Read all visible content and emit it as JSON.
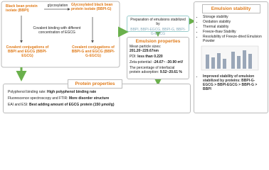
{
  "left": {
    "bbpi": "Black bean protein isolate (BBPI)",
    "glycosylation": "glycosylation",
    "bbpi_g": "Glycosylated black bean protein isolate (BBPI-G)",
    "covalent": "Covalent binding with different concentration of EGCG",
    "bbpi_egcg": "Covalent conjugations of BBPI and EGCG (BBPI-EGCG)",
    "bbpi_g_egcg": "Covalent conjugations of BBPI-G and EGCG (BBPI-G-EGCG)"
  },
  "preparation": {
    "label": "Preparation of emulsions stabilized by",
    "items": "BBPI, BBPI-EGCG, BBPI-G, BBPI-G-EGCG"
  },
  "emulsion_properties": {
    "title": "Emulsion properties",
    "lines": [
      {
        "label": "Mean particle sizes: ",
        "value": "201.20~229.67nm"
      },
      {
        "label": "PDI: ",
        "value": "less than 0.220"
      },
      {
        "label": "Zeta-potential: ",
        "value": "-24.67~ -30.90 mV"
      },
      {
        "label": "The percentage of interfacial protein adsorption: ",
        "value": "9.52~20.61 %"
      }
    ]
  },
  "protein_properties": {
    "title": "Protein properties",
    "lines": [
      {
        "label": "Polyphenol binding rate: ",
        "value": "High polyphenol binding rate"
      },
      {
        "label": "Fluorescence spectroscopy and FTIR: ",
        "value": "More disorder structure"
      },
      {
        "label": "EAI and ESI: ",
        "value": "Best adding amount of EGCG protein (150 μmol/g)"
      }
    ]
  },
  "emulsion_stability": {
    "title": "Emulsion stability",
    "items": [
      "Storage stability",
      "Oxidation stability",
      "Thermal stability",
      "Freeze-thaw Stability",
      "Resolubility of Freeze-dried Emulsion Powder"
    ],
    "conclusion": "Improved stability of emulsion stabilized by proteins: BBPI-G-EGCG > BBPI-EGCG > BBPI-G > BBPI"
  }
}
